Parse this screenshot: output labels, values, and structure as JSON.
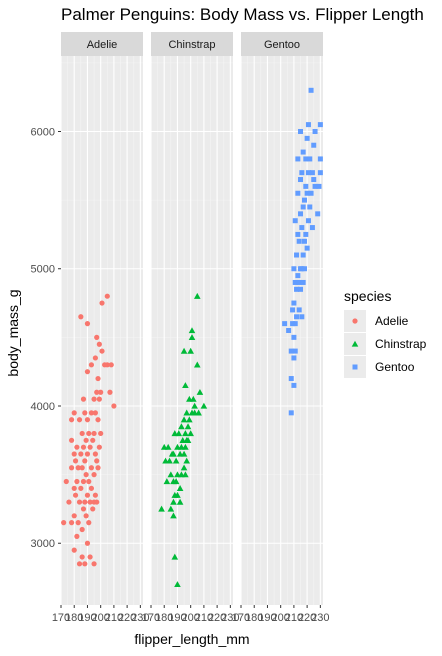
{
  "chart_data": {
    "type": "scatter",
    "title": "Palmer Penguins: Body Mass vs. Flipper Length",
    "xlabel": "flipper_length_mm",
    "ylabel": "body_mass_g",
    "facet_by": "species",
    "facets": [
      "Adelie",
      "Chinstrap",
      "Gentoo"
    ],
    "xlim": [
      170,
      232
    ],
    "ylim": [
      2550,
      6550
    ],
    "x_ticks": [
      170,
      180,
      190,
      200,
      210,
      220,
      230
    ],
    "x_tick_labels": [
      "170",
      "180",
      "190",
      "200",
      "210",
      "220",
      "230"
    ],
    "y_ticks": [
      3000,
      4000,
      5000,
      6000
    ],
    "y_tick_labels": [
      "3000",
      "4000",
      "5000",
      "6000"
    ],
    "grid": true,
    "legend": {
      "title": "species",
      "placement": "right",
      "entries": [
        {
          "label": "Adelie",
          "color": "#F8766D",
          "shape": "circle"
        },
        {
          "label": "Chinstrap",
          "color": "#00BA38",
          "shape": "triangle"
        },
        {
          "label": "Gentoo",
          "color": "#619CFF",
          "shape": "square"
        }
      ]
    },
    "series": [
      {
        "name": "Adelie",
        "color": "#F8766D",
        "shape": "circle",
        "points": [
          [
            172,
            3150
          ],
          [
            174,
            3450
          ],
          [
            176,
            3300
          ],
          [
            178,
            3150
          ],
          [
            178,
            3900
          ],
          [
            178,
            3750
          ],
          [
            178,
            3550
          ],
          [
            180,
            2950
          ],
          [
            180,
            3200
          ],
          [
            180,
            3400
          ],
          [
            180,
            3650
          ],
          [
            180,
            3950
          ],
          [
            181,
            3350
          ],
          [
            181,
            3600
          ],
          [
            182,
            3050
          ],
          [
            182,
            3450
          ],
          [
            182,
            3700
          ],
          [
            183,
            3150
          ],
          [
            183,
            3550
          ],
          [
            184,
            2850
          ],
          [
            184,
            3300
          ],
          [
            184,
            3900
          ],
          [
            185,
            3400
          ],
          [
            185,
            3650
          ],
          [
            185,
            4650
          ],
          [
            186,
            2900
          ],
          [
            186,
            3100
          ],
          [
            186,
            3550
          ],
          [
            186,
            3800
          ],
          [
            187,
            3250
          ],
          [
            187,
            3450
          ],
          [
            187,
            3700
          ],
          [
            187,
            4050
          ],
          [
            188,
            2850
          ],
          [
            188,
            3300
          ],
          [
            188,
            3600
          ],
          [
            188,
            3950
          ],
          [
            189,
            3200
          ],
          [
            189,
            3500
          ],
          [
            189,
            3750
          ],
          [
            190,
            3000
          ],
          [
            190,
            3350
          ],
          [
            190,
            3650
          ],
          [
            190,
            3900
          ],
          [
            190,
            4250
          ],
          [
            190,
            4600
          ],
          [
            191,
            3150
          ],
          [
            191,
            3450
          ],
          [
            191,
            3800
          ],
          [
            192,
            2900
          ],
          [
            192,
            3300
          ],
          [
            192,
            3700
          ],
          [
            193,
            3400
          ],
          [
            193,
            3550
          ],
          [
            193,
            3950
          ],
          [
            193,
            4300
          ],
          [
            194,
            3250
          ],
          [
            194,
            3750
          ],
          [
            195,
            2850
          ],
          [
            195,
            3300
          ],
          [
            195,
            3500
          ],
          [
            195,
            3800
          ],
          [
            195,
            4050
          ],
          [
            196,
            3350
          ],
          [
            196,
            3650
          ],
          [
            196,
            3950
          ],
          [
            196,
            4350
          ],
          [
            197,
            3300
          ],
          [
            197,
            3600
          ],
          [
            197,
            4100
          ],
          [
            197,
            4500
          ],
          [
            198,
            3550
          ],
          [
            198,
            3900
          ],
          [
            198,
            4200
          ],
          [
            199,
            3700
          ],
          [
            199,
            4050
          ],
          [
            199,
            4450
          ],
          [
            200,
            3800
          ],
          [
            200,
            4100
          ],
          [
            201,
            4400
          ],
          [
            201,
            4750
          ],
          [
            203,
            4300
          ],
          [
            205,
            4300
          ],
          [
            205,
            4800
          ],
          [
            207,
            4100
          ],
          [
            208,
            4300
          ],
          [
            210,
            4000
          ]
        ]
      },
      {
        "name": "Chinstrap",
        "color": "#00BA38",
        "shape": "triangle",
        "points": [
          [
            178,
            3250
          ],
          [
            180,
            3700
          ],
          [
            181,
            3600
          ],
          [
            182,
            3450
          ],
          [
            183,
            3700
          ],
          [
            184,
            3600
          ],
          [
            185,
            3250
          ],
          [
            185,
            3500
          ],
          [
            186,
            3650
          ],
          [
            187,
            3200
          ],
          [
            187,
            3300
          ],
          [
            187,
            3450
          ],
          [
            187,
            3650
          ],
          [
            188,
            3800
          ],
          [
            188,
            3350
          ],
          [
            188,
            2900
          ],
          [
            189,
            3450
          ],
          [
            189,
            3600
          ],
          [
            190,
            2700
          ],
          [
            190,
            3350
          ],
          [
            190,
            3500
          ],
          [
            190,
            3700
          ],
          [
            191,
            3800
          ],
          [
            192,
            3650
          ],
          [
            192,
            3400
          ],
          [
            192,
            3300
          ],
          [
            193,
            3500
          ],
          [
            193,
            3700
          ],
          [
            193,
            3850
          ],
          [
            194,
            3750
          ],
          [
            195,
            3550
          ],
          [
            195,
            3650
          ],
          [
            195,
            3900
          ],
          [
            195,
            4400
          ],
          [
            196,
            3500
          ],
          [
            196,
            3700
          ],
          [
            196,
            3800
          ],
          [
            196,
            4150
          ],
          [
            197,
            3600
          ],
          [
            197,
            3750
          ],
          [
            197,
            3950
          ],
          [
            198,
            3750
          ],
          [
            198,
            3850
          ],
          [
            199,
            3900
          ],
          [
            199,
            4050
          ],
          [
            200,
            3800
          ],
          [
            200,
            4400
          ],
          [
            201,
            3950
          ],
          [
            201,
            4500
          ],
          [
            201,
            4550
          ],
          [
            202,
            4050
          ],
          [
            203,
            3950
          ],
          [
            203,
            4000
          ],
          [
            205,
            4300
          ],
          [
            205,
            4800
          ],
          [
            206,
            3950
          ],
          [
            207,
            4100
          ],
          [
            210,
            4000
          ]
        ]
      },
      {
        "name": "Gentoo",
        "color": "#619CFF",
        "shape": "square",
        "points": [
          [
            203,
            4600
          ],
          [
            206,
            4550
          ],
          [
            208,
            3950
          ],
          [
            208,
            4200
          ],
          [
            208,
            4400
          ],
          [
            209,
            4600
          ],
          [
            209,
            4700
          ],
          [
            210,
            4150
          ],
          [
            210,
            4350
          ],
          [
            210,
            4500
          ],
          [
            210,
            4750
          ],
          [
            210,
            5000
          ],
          [
            211,
            4400
          ],
          [
            211,
            4600
          ],
          [
            211,
            4900
          ],
          [
            211,
            5350
          ],
          [
            212,
            4650
          ],
          [
            212,
            4850
          ],
          [
            212,
            5100
          ],
          [
            213,
            4950
          ],
          [
            213,
            5250
          ],
          [
            213,
            5550
          ],
          [
            213,
            5800
          ],
          [
            214,
            4700
          ],
          [
            214,
            4900
          ],
          [
            214,
            5200
          ],
          [
            215,
            4850
          ],
          [
            215,
            5000
          ],
          [
            215,
            5400
          ],
          [
            215,
            5650
          ],
          [
            215,
            6000
          ],
          [
            216,
            4650
          ],
          [
            216,
            5000
          ],
          [
            216,
            5300
          ],
          [
            216,
            5700
          ],
          [
            217,
            4900
          ],
          [
            217,
            5100
          ],
          [
            217,
            5450
          ],
          [
            217,
            5850
          ],
          [
            218,
            5000
          ],
          [
            218,
            5200
          ],
          [
            218,
            5500
          ],
          [
            219,
            5250
          ],
          [
            219,
            5600
          ],
          [
            219,
            5800
          ],
          [
            220,
            5150
          ],
          [
            220,
            5550
          ],
          [
            220,
            5950
          ],
          [
            221,
            5350
          ],
          [
            221,
            5700
          ],
          [
            221,
            6050
          ],
          [
            222,
            5450
          ],
          [
            222,
            5800
          ],
          [
            223,
            5550
          ],
          [
            223,
            6300
          ],
          [
            224,
            5300
          ],
          [
            224,
            5700
          ],
          [
            225,
            5650
          ],
          [
            225,
            5900
          ],
          [
            226,
            5600
          ],
          [
            226,
            6000
          ],
          [
            228,
            5400
          ],
          [
            229,
            5600
          ],
          [
            230,
            5700
          ],
          [
            230,
            6050
          ],
          [
            230,
            5800
          ]
        ]
      }
    ]
  }
}
